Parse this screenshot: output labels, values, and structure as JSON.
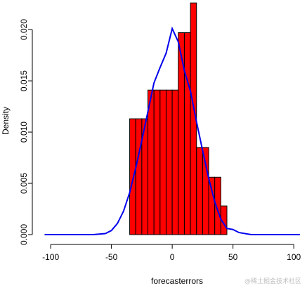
{
  "chart_data": {
    "type": "histogram",
    "xlabel": "forecasterrors",
    "ylabel": "Density",
    "xlim": [
      -107,
      108
    ],
    "ylim": [
      0,
      0.0222
    ],
    "xticks": [
      -100,
      -50,
      0,
      50,
      100
    ],
    "yticks": [
      0.0,
      0.005,
      0.01,
      0.015,
      0.02
    ],
    "ytick_labels": [
      "0.000",
      "0.005",
      "0.010",
      "0.015",
      "0.020"
    ],
    "bins": [
      {
        "x0": -35,
        "x1": -30,
        "density": 0.0113
      },
      {
        "x0": -30,
        "x1": -25,
        "density": 0.0113
      },
      {
        "x0": -25,
        "x1": -20,
        "density": 0.0113
      },
      {
        "x0": -20,
        "x1": -15,
        "density": 0.0141
      },
      {
        "x0": -15,
        "x1": -10,
        "density": 0.0141
      },
      {
        "x0": -10,
        "x1": -5,
        "density": 0.0141
      },
      {
        "x0": -5,
        "x1": 0,
        "density": 0.0141
      },
      {
        "x0": 0,
        "x1": 5,
        "density": 0.0141
      },
      {
        "x0": 5,
        "x1": 10,
        "density": 0.0197
      },
      {
        "x0": 10,
        "x1": 15,
        "density": 0.0197
      },
      {
        "x0": 15,
        "x1": 20,
        "density": 0.0226
      },
      {
        "x0": 20,
        "x1": 25,
        "density": 0.0085
      },
      {
        "x0": 25,
        "x1": 30,
        "density": 0.0085
      },
      {
        "x0": 30,
        "x1": 35,
        "density": 0.0056
      },
      {
        "x0": 35,
        "x1": 40,
        "density": 0.0056
      },
      {
        "x0": 40,
        "x1": 45,
        "density": 0.0028
      }
    ],
    "density_curve": {
      "x": [
        -105,
        -95,
        -85,
        -75,
        -65,
        -55,
        -50,
        -45,
        -40,
        -35,
        -30,
        -25,
        -20,
        -15,
        -10,
        -5,
        0,
        5,
        10,
        15,
        20,
        25,
        30,
        35,
        40,
        45,
        50,
        55,
        65,
        75,
        85,
        95,
        105
      ],
      "y": [
        0,
        0,
        0,
        0,
        0,
        0.0001,
        0.0004,
        0.0011,
        0.0023,
        0.0041,
        0.0065,
        0.0092,
        0.012,
        0.0148,
        0.0163,
        0.0177,
        0.0201,
        0.0188,
        0.016,
        0.014,
        0.011,
        0.0082,
        0.0055,
        0.0032,
        0.0015,
        0.0006,
        0.0005,
        0.0002,
        0,
        0,
        0,
        0,
        0
      ]
    },
    "bar_fill": "#ff0000",
    "bar_stroke": "#000000",
    "curve_color": "#0000ee",
    "grid": false
  },
  "watermark_text": "@稀土掘金技术社区"
}
